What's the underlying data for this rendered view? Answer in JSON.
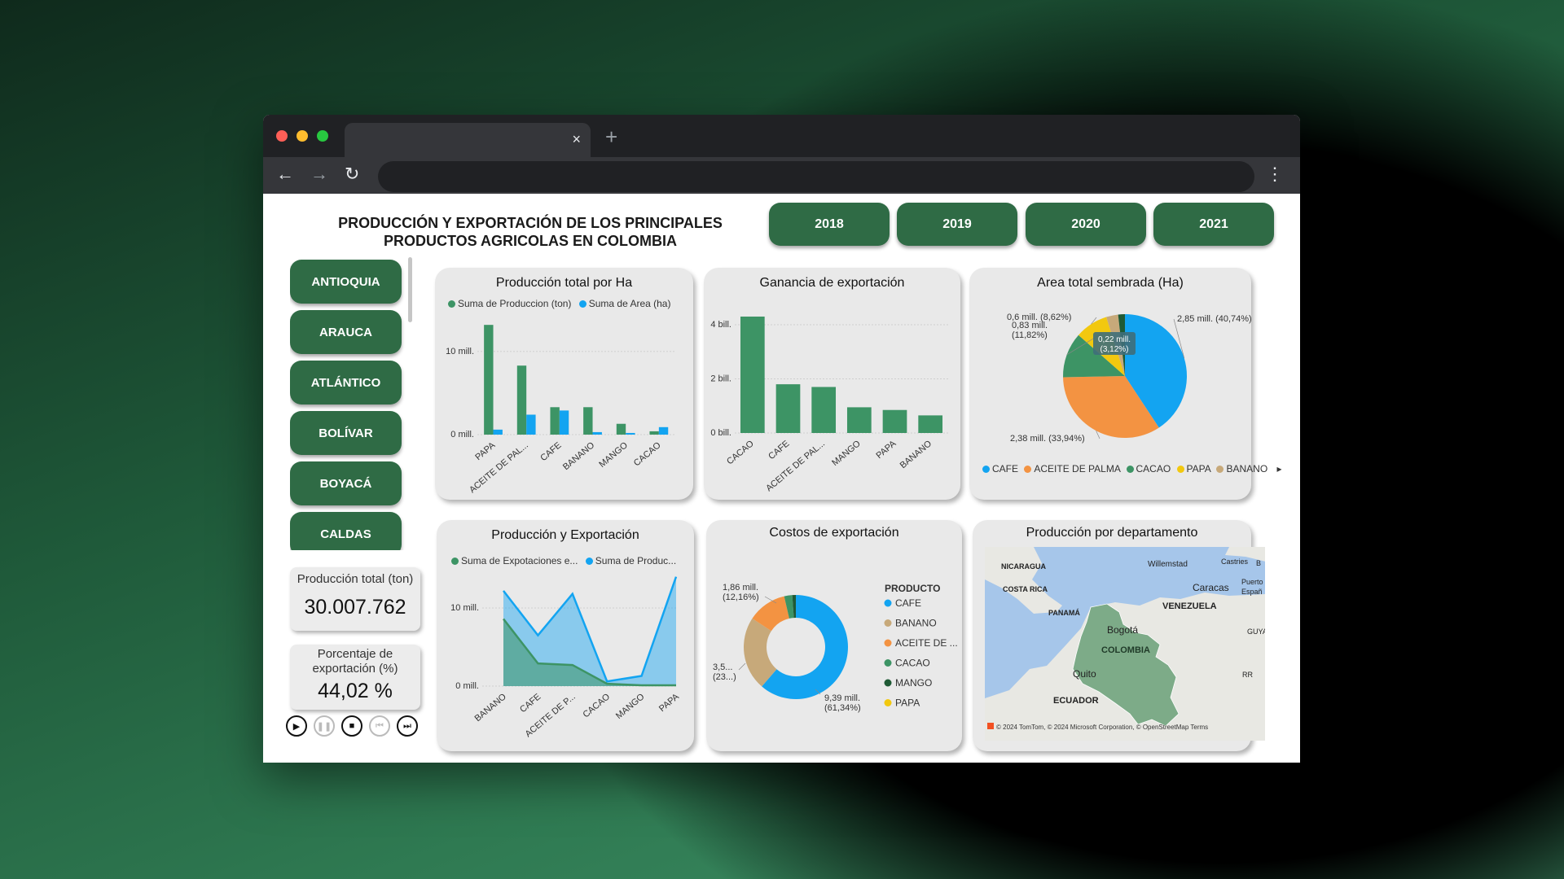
{
  "browser": {
    "new_tab": "+",
    "tab_close": "×",
    "back": "←",
    "forward": "→",
    "reload": "↻",
    "menu": "⋮",
    "address_value": "",
    "dots": [
      "#ff5f57",
      "#febc2e",
      "#28c840"
    ]
  },
  "dashboard": {
    "title_line1": "PRODUCCIÓN Y EXPORTACIÓN DE LOS PRINCIPALES",
    "title_line2": "PRODUCTOS AGRICOLAS EN COLOMBIA",
    "years": [
      "2018",
      "2019",
      "2020",
      "2021"
    ],
    "departments": [
      "ANTIOQUIA",
      "ARAUCA",
      "ATLÁNTICO",
      "BOLÍVAR",
      "BOYACÁ",
      "CALDAS"
    ],
    "kpi_production_label": "Producción total (ton)",
    "kpi_production_value": "30.007.762",
    "kpi_export_label": "Porcentaje de exportación (%)",
    "kpi_export_value": "44,02 %",
    "colors": {
      "accent": "#2f6b45",
      "green": "#3d9465",
      "blue": "#13a4f1",
      "orange": "#f39342",
      "tan": "#c7a97a",
      "yellow": "#f2c80f",
      "dark_green": "#1f5a35"
    }
  },
  "chart_data": [
    {
      "type": "bar",
      "title": "Producción total por Ha",
      "categories": [
        "PAPA",
        "ACEITE DE PAL...",
        "CAFE",
        "BANANO",
        "MANGO",
        "CACAO"
      ],
      "series": [
        {
          "name": "Suma de Produccion (ton)",
          "color": "#3d9465",
          "values": [
            13.2,
            8.3,
            3.3,
            3.3,
            1.3,
            0.4
          ]
        },
        {
          "name": "Suma de Area (ha)",
          "color": "#13a4f1",
          "values": [
            0.6,
            2.4,
            2.9,
            0.3,
            0.2,
            0.9
          ]
        }
      ],
      "yticks": [
        "10 mill.",
        "0 mill."
      ],
      "ytick_values": [
        10,
        0
      ],
      "ylim": [
        0,
        14
      ]
    },
    {
      "type": "bar",
      "title": "Ganancia de exportación",
      "categories": [
        "CACAO",
        "CAFE",
        "ACEITE DE PAL...",
        "MANGO",
        "PAPA",
        "BANANO"
      ],
      "series": [
        {
          "color": "#3d9465",
          "values": [
            4.3,
            1.8,
            1.7,
            0.95,
            0.85,
            0.65
          ]
        }
      ],
      "yticks": [
        "4 bill.",
        "2 bill.",
        "0 bill."
      ],
      "ytick_values": [
        4,
        2,
        0
      ],
      "ylim": [
        0,
        4.6
      ]
    },
    {
      "type": "pie",
      "title": "Area total sembrada (Ha)",
      "slices": [
        {
          "name": "CAFE",
          "value": 40.74,
          "color": "#13a4f1",
          "label": "2,85 mill. (40,74%)"
        },
        {
          "name": "ACEITE DE PALMA",
          "value": 33.94,
          "color": "#f39342",
          "label": "2,38 mill. (33,94%)"
        },
        {
          "name": "CACAO",
          "value": 11.82,
          "color": "#3d9465",
          "label": "0,83 mill. (11,82%)"
        },
        {
          "name": "PAPA",
          "value": 8.62,
          "color": "#f2c80f",
          "label": "0,6 mill. (8,62%)"
        },
        {
          "name": "BANANO",
          "value": 3.12,
          "color": "#c7a97a",
          "label": "0,22 mill. (3,12%)"
        },
        {
          "name": "MANGO",
          "value": 1.76,
          "color": "#1f5a35",
          "label": ""
        }
      ],
      "legend": [
        "CAFE",
        "ACEITE DE PALMA",
        "CACAO",
        "PAPA",
        "BANANO"
      ],
      "legend_more": "▸"
    },
    {
      "type": "area",
      "title": "Producción y Exportación",
      "categories": [
        "BANANO",
        "CAFE",
        "ACEITE DE P...",
        "CACAO",
        "MANGO",
        "PAPA"
      ],
      "series": [
        {
          "name": "Suma de Expotaciones e...",
          "color": "#3d9465",
          "values": [
            8.6,
            2.9,
            2.7,
            0.3,
            0.1,
            0.1
          ]
        },
        {
          "name": "Suma de Produc...",
          "color": "#13a4f1",
          "values": [
            12.2,
            6.5,
            11.8,
            0.6,
            1.3,
            14.0
          ]
        }
      ],
      "yticks": [
        "10 mill.",
        "0 mill."
      ],
      "ytick_values": [
        10,
        0
      ],
      "ylim": [
        0,
        15
      ]
    },
    {
      "type": "pie",
      "title": "Costos de exportación",
      "donut": true,
      "legend_title": "PRODUCTO",
      "slices": [
        {
          "name": "CAFE",
          "value": 61.34,
          "color": "#13a4f1"
        },
        {
          "name": "BANANO",
          "value": 22.9,
          "color": "#c7a97a"
        },
        {
          "name": "ACEITE DE ...",
          "value": 12.16,
          "color": "#f39342"
        },
        {
          "name": "CACAO",
          "value": 2.5,
          "color": "#3d9465"
        },
        {
          "name": "MANGO",
          "value": 1.1,
          "color": "#1f5a35"
        },
        {
          "name": "PAPA",
          "value": 0.0,
          "color": "#f2c80f"
        }
      ],
      "labels": [
        "9,39 mill.",
        "(61,34%)",
        "1,86 mill.",
        "(12,16%)",
        "3,5...",
        "(23...)"
      ]
    }
  ],
  "map": {
    "title": "Producción por departamento",
    "labels": [
      "NICARAGUA",
      "Willemstad",
      "Castries",
      "B",
      "COSTA RICA",
      "Caracas",
      "Puerto",
      "Españ",
      "PANAMÁ",
      "VENEZUELA",
      "GUYAN",
      "Bogotá",
      "COLOMBIA",
      "Quito",
      "RR",
      "ECUADOR"
    ],
    "attribution": "© 2024 TomTom, © 2024 Microsoft Corporation, © OpenStreetMap Terms",
    "land_color": "#e8e8e3",
    "water_color": "#a6c6ea",
    "highlight_color": "#7dab88"
  }
}
